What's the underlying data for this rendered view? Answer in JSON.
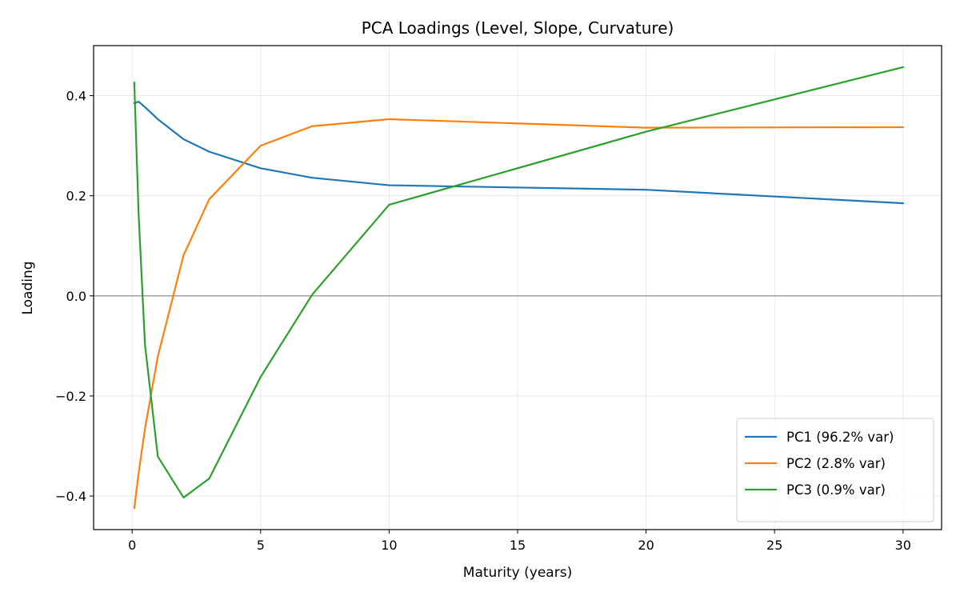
{
  "chart_data": {
    "type": "line",
    "title": "PCA Loadings (Level, Slope, Curvature)",
    "xlabel": "Maturity (years)",
    "ylabel": "Loading",
    "xlim": [
      -1.5,
      31.5
    ],
    "ylim": [
      -0.467,
      0.5
    ],
    "xticks": [
      0,
      5,
      10,
      15,
      20,
      25,
      30
    ],
    "yticks": [
      -0.4,
      -0.2,
      0.0,
      0.2,
      0.4
    ],
    "ytick_labels": [
      "−0.4",
      "−0.2",
      "0.0",
      "0.2",
      "0.4"
    ],
    "grid": true,
    "zero_line": true,
    "legend_position": "lower-right",
    "x": [
      0.0833,
      0.25,
      0.5,
      1,
      2,
      3,
      5,
      7,
      10,
      20,
      30
    ],
    "series": [
      {
        "name": "PC1 (96.2% var)",
        "color": "#1f77b4",
        "values": [
          0.385,
          0.388,
          0.377,
          0.353,
          0.313,
          0.288,
          0.255,
          0.236,
          0.221,
          0.212,
          0.185
        ]
      },
      {
        "name": "PC2 (2.8% var)",
        "color": "#ff7f0e",
        "values": [
          -0.424,
          -0.355,
          -0.265,
          -0.121,
          0.081,
          0.193,
          0.3,
          0.339,
          0.353,
          0.336,
          0.337
        ]
      },
      {
        "name": "PC3 (0.9% var)",
        "color": "#2ca02c",
        "values": [
          0.426,
          0.165,
          -0.098,
          -0.321,
          -0.403,
          -0.365,
          -0.162,
          0.002,
          0.182,
          0.328,
          0.457
        ]
      }
    ]
  }
}
